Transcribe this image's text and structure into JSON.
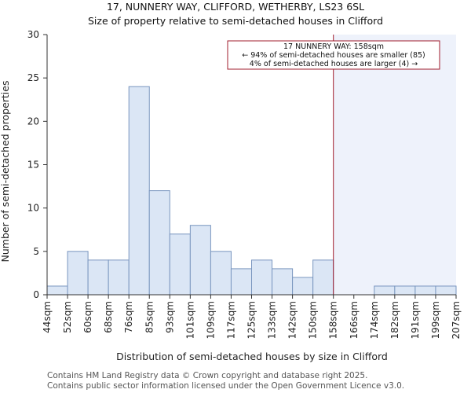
{
  "title_line1": "17, NUNNERY WAY, CLIFFORD, WETHERBY, LS23 6SL",
  "title_line2": "Size of property relative to semi-detached houses in Clifford",
  "footer_line1": "Contains HM Land Registry data © Crown copyright and database right 2025.",
  "footer_line2": "Contains public sector information licensed under the Open Government Licence v3.0.",
  "annotation": {
    "line1": "17 NUNNERY WAY: 158sqm",
    "line2": "← 94% of semi-detached houses are smaller (85)",
    "line3": "4% of semi-detached houses are larger (4) →"
  },
  "colors": {
    "bar_fill": "#dbe6f5",
    "bar_stroke": "#7a96bf",
    "marker": "#a01c2c",
    "highlight_bg": "#eef2fb"
  },
  "chart_data": {
    "type": "bar",
    "title": "17, NUNNERY WAY, CLIFFORD, WETHERBY, LS23 6SL — Size of property relative to semi-detached houses in Clifford",
    "xlabel": "Distribution of semi-detached houses by size in Clifford",
    "ylabel": "Number of semi-detached properties",
    "ylim": [
      0,
      30
    ],
    "yticks": [
      0,
      5,
      10,
      15,
      20,
      25,
      30
    ],
    "bin_edges": [
      "44sqm",
      "52sqm",
      "60sqm",
      "68sqm",
      "76sqm",
      "85sqm",
      "93sqm",
      "101sqm",
      "109sqm",
      "117sqm",
      "125sqm",
      "133sqm",
      "142sqm",
      "150sqm",
      "158sqm",
      "166sqm",
      "174sqm",
      "182sqm",
      "191sqm",
      "199sqm",
      "207sqm"
    ],
    "values": [
      1,
      5,
      4,
      4,
      24,
      12,
      7,
      8,
      5,
      3,
      4,
      3,
      2,
      4,
      0,
      0,
      1,
      1,
      1,
      1
    ],
    "marker_value": "158sqm",
    "marker_bin_index": 14,
    "grid": false
  }
}
